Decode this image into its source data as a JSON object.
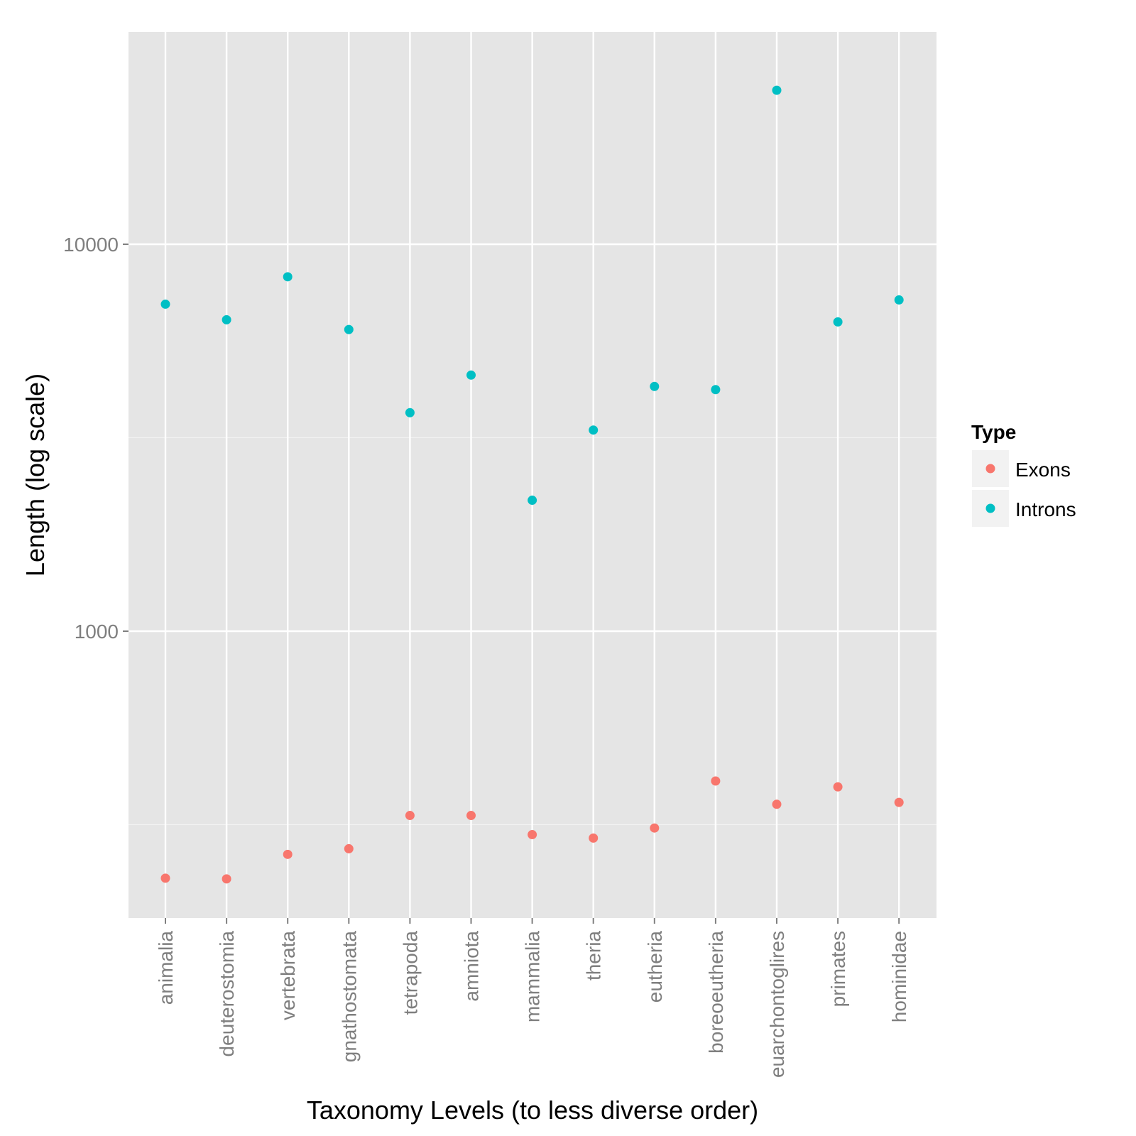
{
  "chart_data": {
    "type": "scatter",
    "xlabel": "Taxonomy Levels (to less diverse order)",
    "ylabel": "Length (log scale)",
    "y_scale": "log10",
    "ylim": [
      186,
      29000
    ],
    "y_ticks": [
      1000,
      10000
    ],
    "y_tick_labels": [
      "1000",
      "10000"
    ],
    "grid": true,
    "categories": [
      "animalia",
      "deuterostomia",
      "vertebrata",
      "gnathostomata",
      "tetrapoda",
      "amniota",
      "mammalia",
      "theria",
      "eutheria",
      "boreoeutheria",
      "euarchontoglires",
      "primates",
      "hominidae"
    ],
    "series": [
      {
        "name": "Exons",
        "color": "#f8766d",
        "values": [
          230,
          229,
          265,
          274,
          334,
          334,
          298,
          292,
          310,
          410,
          357,
          396,
          361
        ]
      },
      {
        "name": "Introns",
        "color": "#00bfc4",
        "values": [
          7000,
          6380,
          8240,
          6020,
          3670,
          4590,
          2180,
          3310,
          4290,
          4210,
          25000,
          6300,
          7180
        ]
      }
    ],
    "legend": {
      "title": "Type",
      "position": "right"
    }
  }
}
